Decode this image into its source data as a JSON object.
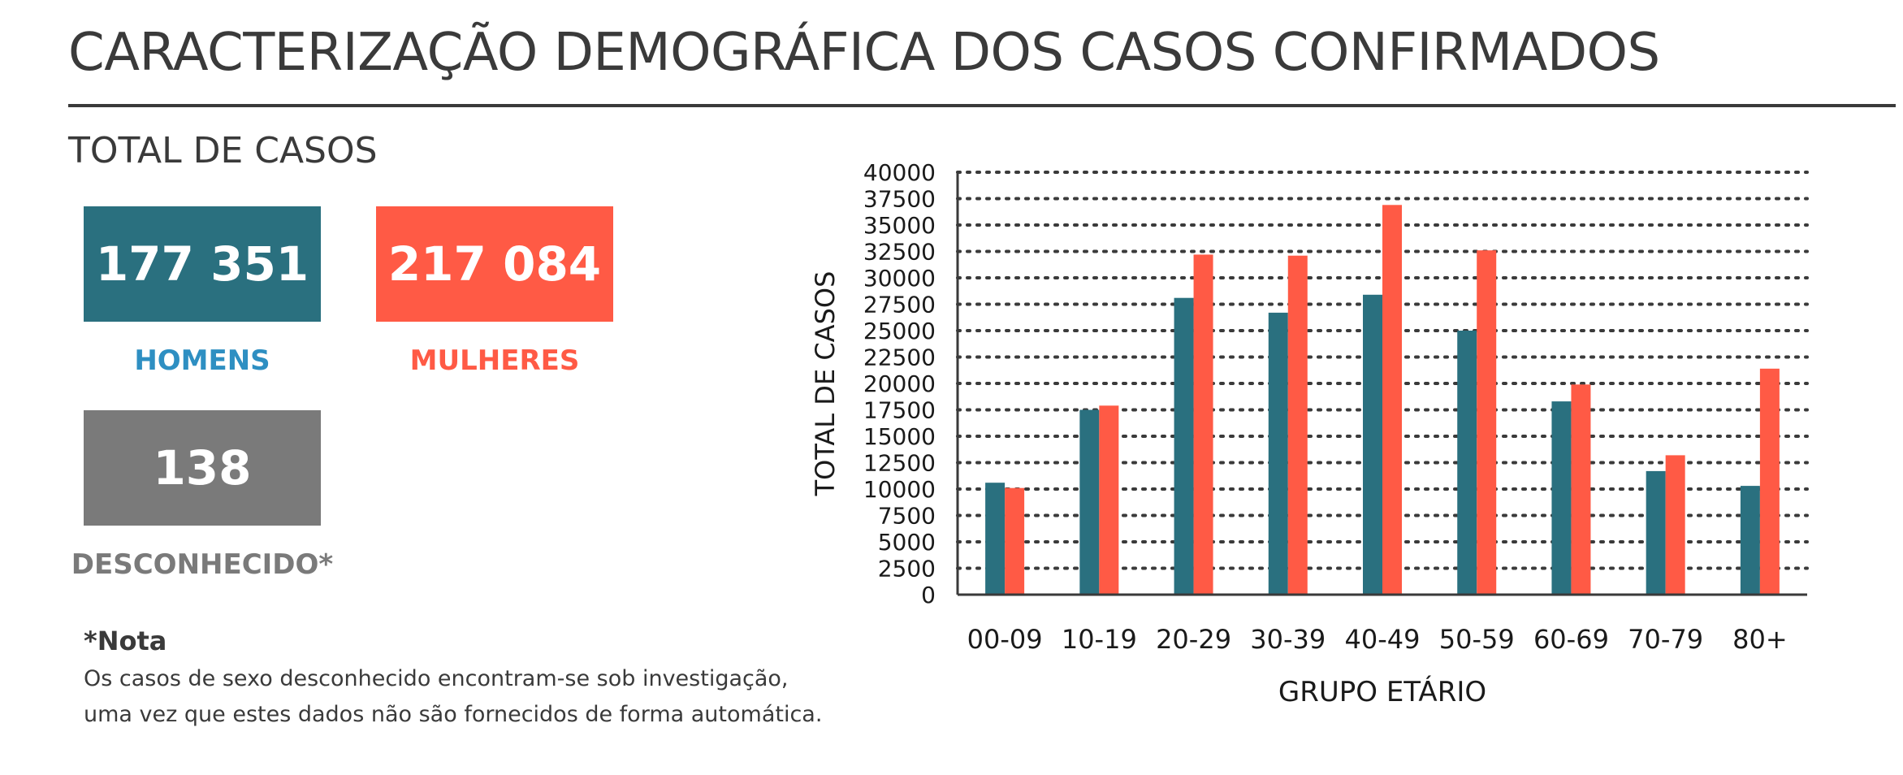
{
  "header": {
    "title": "CARACTERIZAÇÃO DEMOGRÁFICA DOS CASOS CONFIRMADOS",
    "subtitle": "TOTAL DE CASOS"
  },
  "totals": {
    "men": {
      "value": "177 351",
      "label": "HOMENS",
      "color": "#2a707f"
    },
    "women": {
      "value": "217 084",
      "label": "MULHERES",
      "color": "#ff5a45"
    },
    "unknown": {
      "value": "138",
      "label": "DESCONHECIDO*",
      "color": "#7a7a7a"
    }
  },
  "note": {
    "title": "*Nota",
    "line1": "Os casos de sexo desconhecido encontram-se sob investigação,",
    "line2": "uma vez que estes dados não são fornecidos de forma automática."
  },
  "chart_data": {
    "type": "bar",
    "xlabel": "GRUPO ETÁRIO",
    "ylabel": "TOTAL DE CASOS",
    "categories": [
      "00-09",
      "10-19",
      "20-29",
      "30-39",
      "40-49",
      "50-59",
      "60-69",
      "70-79",
      "80+"
    ],
    "series": [
      {
        "color": "#2a707f",
        "values": [
          10600,
          17500,
          28100,
          26700,
          28400,
          25000,
          18300,
          11700,
          10300
        ]
      },
      {
        "color": "#ff5a45",
        "values": [
          10100,
          17900,
          32200,
          32100,
          36900,
          32600,
          19900,
          13200,
          21400
        ]
      }
    ],
    "ylim": [
      0,
      40000
    ],
    "yticks": [
      "0",
      "2500",
      "5000",
      "7500",
      "10000",
      "12500",
      "15000",
      "17500",
      "20000",
      "22500",
      "25000",
      "27500",
      "30000",
      "32500",
      "35000",
      "37500",
      "40000"
    ],
    "grid": true,
    "legend": "none"
  }
}
